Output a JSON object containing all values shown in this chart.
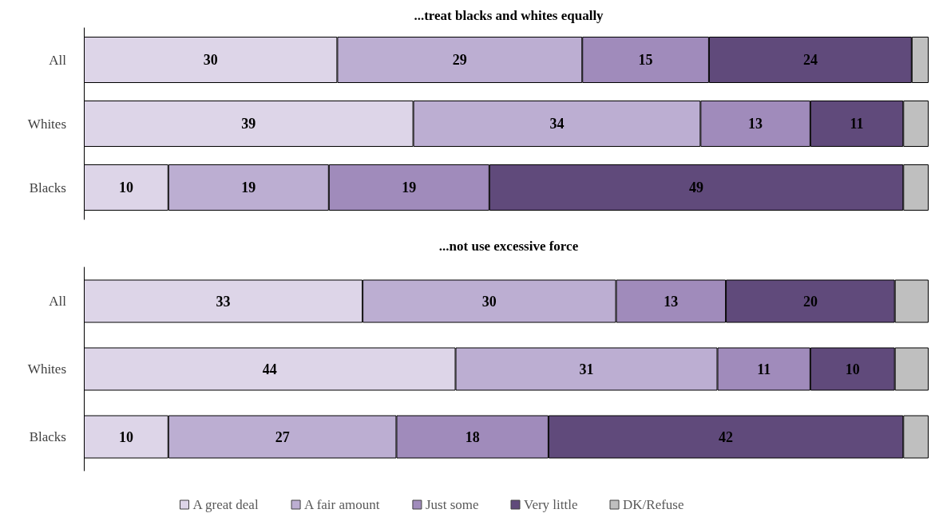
{
  "chart_data": [
    {
      "type": "bar",
      "title": "...treat blacks and whites equally",
      "orientation": "horizontal",
      "stacked": true,
      "categories": [
        "All",
        "Whites",
        "Blacks"
      ],
      "xlim": [
        0,
        100
      ],
      "tick_labels": "y",
      "grid": false,
      "legend": false,
      "series": [
        {
          "color": "#ddd5e8",
          "values": [
            30,
            39,
            10
          ],
          "value_labels": [
            "30",
            "39",
            "10"
          ]
        },
        {
          "color": "#bcaed2",
          "values": [
            29,
            34,
            19
          ],
          "value_labels": [
            "29",
            "34",
            "19"
          ]
        },
        {
          "color": "#a08bbb",
          "values": [
            15,
            13,
            19
          ],
          "value_labels": [
            "15",
            "13",
            "19"
          ]
        },
        {
          "color": "#604a7b",
          "values": [
            24,
            11,
            49
          ],
          "value_labels": [
            "24",
            "11",
            "49"
          ]
        },
        {
          "color": "#bfbfbf",
          "values": [
            2,
            3,
            3
          ],
          "value_labels": [
            null,
            null,
            null
          ]
        }
      ]
    },
    {
      "type": "bar",
      "title": "...not use excessive force",
      "orientation": "horizontal",
      "stacked": true,
      "categories": [
        "All",
        "Whites",
        "Blacks"
      ],
      "xlim": [
        0,
        100
      ],
      "tick_labels": "y",
      "grid": false,
      "legend": "bottom",
      "series": [
        {
          "name": "A great deal",
          "color": "#ddd5e8",
          "values": [
            33,
            44,
            10
          ],
          "value_labels": [
            "33",
            "44",
            "10"
          ]
        },
        {
          "name": "A fair amount",
          "color": "#bcaed2",
          "values": [
            30,
            31,
            27
          ],
          "value_labels": [
            "30",
            "31",
            "27"
          ]
        },
        {
          "name": "Just some",
          "color": "#a08bbb",
          "values": [
            13,
            11,
            18
          ],
          "value_labels": [
            "13",
            "11",
            "18"
          ]
        },
        {
          "name": "Very little",
          "color": "#604a7b",
          "values": [
            20,
            10,
            42
          ],
          "value_labels": [
            "20",
            "10",
            "42"
          ]
        },
        {
          "name": "DK/Refuse",
          "color": "#bfbfbf",
          "values": [
            4,
            4,
            3
          ],
          "value_labels": [
            null,
            null,
            null
          ]
        }
      ]
    }
  ]
}
